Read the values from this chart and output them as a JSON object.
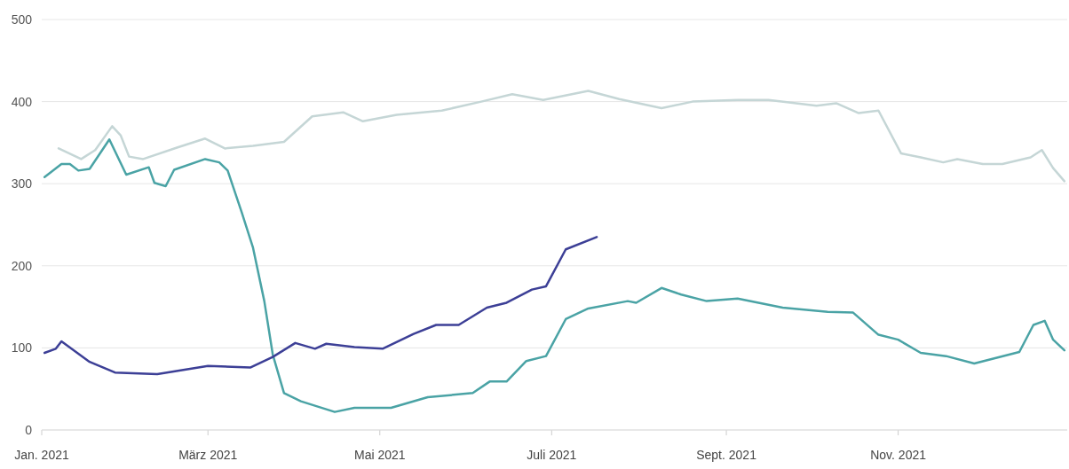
{
  "chart_data": {
    "type": "line",
    "xlim": [
      "2021-01-01",
      "2021-12-31"
    ],
    "xticks": [
      {
        "value": "2021-01-01",
        "label": "Jan. 2021"
      },
      {
        "value": "2021-03-01",
        "label": "März 2021"
      },
      {
        "value": "2021-05-01",
        "label": "Mai 2021"
      },
      {
        "value": "2021-07-01",
        "label": "Juli 2021"
      },
      {
        "value": "2021-09-01",
        "label": "Sept. 2021"
      },
      {
        "value": "2021-11-01",
        "label": "Nov. 2021"
      }
    ],
    "ylim": [
      0,
      500
    ],
    "yticks": [
      0,
      100,
      200,
      300,
      400,
      500
    ],
    "grid": "y",
    "line_style": "solid",
    "series": [
      {
        "color": "#c5d6d6",
        "x": [
          "2021-01-07",
          "2021-01-15",
          "2021-01-20",
          "2021-01-26",
          "2021-01-29",
          "2021-02-01",
          "2021-02-06",
          "2021-02-18",
          "2021-02-28",
          "2021-03-07",
          "2021-03-17",
          "2021-03-28",
          "2021-04-07",
          "2021-04-18",
          "2021-04-25",
          "2021-05-07",
          "2021-05-23",
          "2021-06-06",
          "2021-06-17",
          "2021-06-28",
          "2021-07-14",
          "2021-07-25",
          "2021-08-09",
          "2021-08-20",
          "2021-09-05",
          "2021-09-16",
          "2021-10-03",
          "2021-10-10",
          "2021-10-18",
          "2021-10-25",
          "2021-11-02",
          "2021-11-09",
          "2021-11-17",
          "2021-11-22",
          "2021-12-01",
          "2021-12-08",
          "2021-12-18",
          "2021-12-22",
          "2021-12-26",
          "2021-12-30"
        ],
        "values": [
          343,
          330,
          341,
          370,
          359,
          333,
          330,
          344,
          355,
          343,
          346,
          351,
          382,
          387,
          376,
          384,
          389,
          400,
          409,
          402,
          413,
          403,
          392,
          400,
          402,
          402,
          395,
          398,
          386,
          389,
          337,
          332,
          326,
          330,
          324,
          324,
          332,
          341,
          319,
          303
        ]
      },
      {
        "color": "#4aa3a5",
        "x": [
          "2021-01-02",
          "2021-01-08",
          "2021-01-11",
          "2021-01-14",
          "2021-01-18",
          "2021-01-25",
          "2021-01-31",
          "2021-02-08",
          "2021-02-10",
          "2021-02-14",
          "2021-02-17",
          "2021-02-28",
          "2021-03-05",
          "2021-03-08",
          "2021-03-13",
          "2021-03-17",
          "2021-03-21",
          "2021-03-24",
          "2021-03-28",
          "2021-04-03",
          "2021-04-15",
          "2021-04-22",
          "2021-05-05",
          "2021-05-18",
          "2021-06-03",
          "2021-06-09",
          "2021-06-15",
          "2021-06-22",
          "2021-06-29",
          "2021-07-06",
          "2021-07-14",
          "2021-07-28",
          "2021-07-31",
          "2021-08-09",
          "2021-08-16",
          "2021-08-25",
          "2021-09-05",
          "2021-09-21",
          "2021-10-07",
          "2021-10-16",
          "2021-10-25",
          "2021-11-01",
          "2021-11-09",
          "2021-11-18",
          "2021-11-28",
          "2021-12-14",
          "2021-12-19",
          "2021-12-23",
          "2021-12-26",
          "2021-12-30"
        ],
        "values": [
          308,
          324,
          324,
          316,
          318,
          354,
          311,
          320,
          301,
          297,
          317,
          330,
          326,
          316,
          265,
          222,
          157,
          92,
          45,
          35,
          22,
          27,
          27,
          40,
          45,
          59,
          59,
          84,
          90,
          135,
          148,
          157,
          155,
          173,
          165,
          157,
          160,
          149,
          144,
          143,
          116,
          110,
          94,
          90,
          81,
          95,
          128,
          133,
          110,
          97
        ]
      },
      {
        "color": "#3c3f96",
        "x": [
          "2021-01-02",
          "2021-01-06",
          "2021-01-08",
          "2021-01-18",
          "2021-01-27",
          "2021-02-11",
          "2021-03-01",
          "2021-03-16",
          "2021-03-24",
          "2021-04-01",
          "2021-04-08",
          "2021-04-12",
          "2021-04-22",
          "2021-05-02",
          "2021-05-13",
          "2021-05-21",
          "2021-05-29",
          "2021-06-08",
          "2021-06-15",
          "2021-06-24",
          "2021-06-29",
          "2021-07-06",
          "2021-07-17"
        ],
        "values": [
          94,
          99,
          108,
          83,
          70,
          68,
          78,
          76,
          89,
          106,
          99,
          105,
          101,
          99,
          117,
          128,
          128,
          149,
          155,
          171,
          175,
          220,
          235
        ]
      }
    ]
  }
}
